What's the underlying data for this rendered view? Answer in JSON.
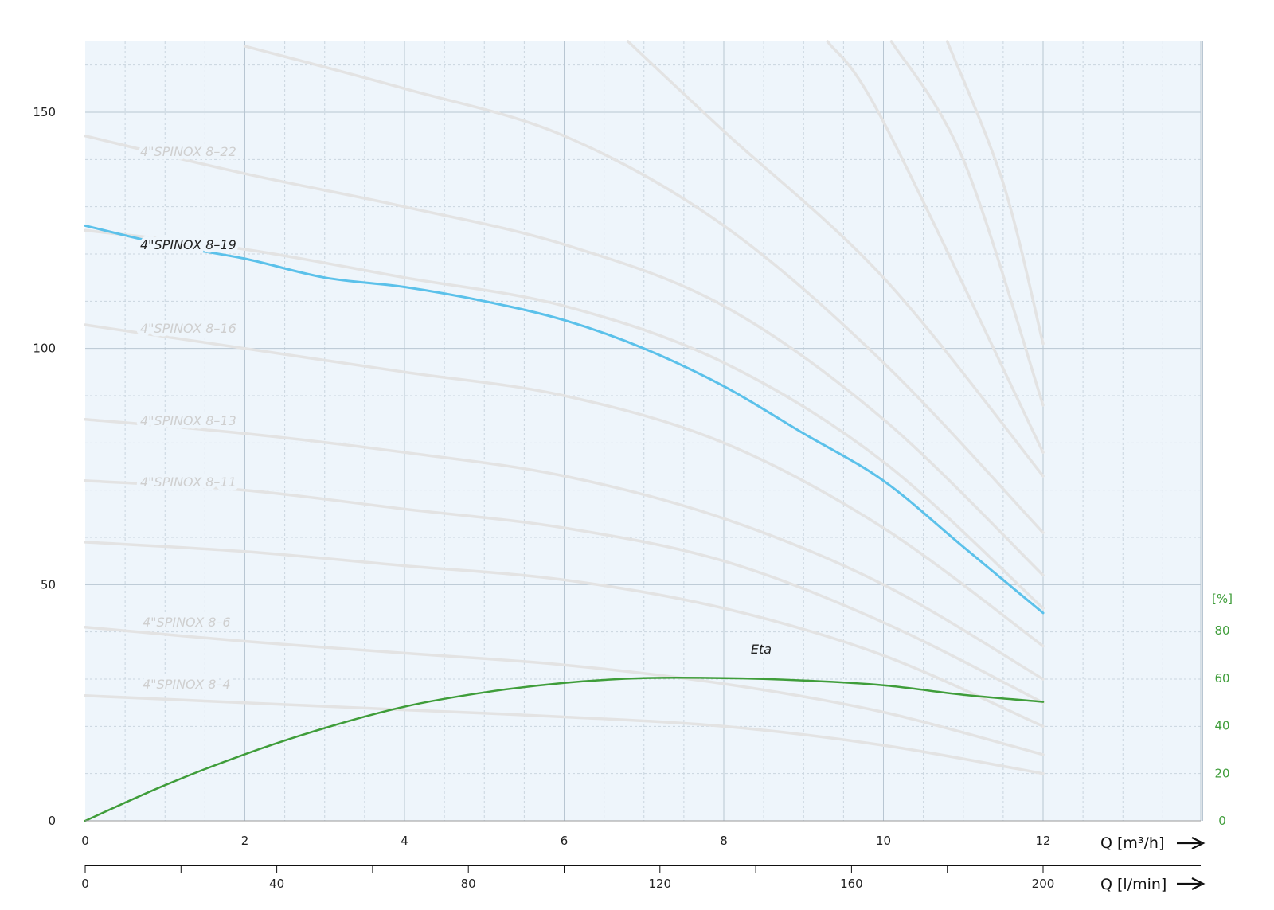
{
  "chart_data": {
    "type": "line",
    "x_axis": {
      "label": "Q [m³/h]",
      "range": [
        0,
        14
      ],
      "ticks": [
        0,
        2,
        4,
        6,
        8,
        10,
        12
      ],
      "tick_labels": [
        "0",
        "2",
        "4",
        "6",
        "8",
        "10",
        "12"
      ]
    },
    "x_axis_secondary": {
      "label": "Q [l/min]",
      "ticks": [
        0,
        40,
        80,
        120,
        160,
        200
      ],
      "tick_labels": [
        "0",
        "40",
        "80",
        "120",
        "160",
        "200"
      ]
    },
    "y_axis": {
      "range": [
        0,
        165
      ],
      "ticks": [
        0,
        50,
        100,
        150
      ],
      "tick_labels": [
        "0",
        "50",
        "100",
        "150"
      ]
    },
    "y_axis_secondary": {
      "label": "[%]",
      "range": [
        0,
        100
      ],
      "ticks": [
        0,
        20,
        40,
        60,
        80
      ],
      "tick_labels": [
        "0",
        "20",
        "40",
        "60",
        "80"
      ]
    },
    "grid": true,
    "colors": {
      "highlight": "#5bc1ea",
      "eta": "#3f9d3a",
      "background_curves": "#e3e3e3",
      "plot_background": "#eef5fb",
      "label_faded": "#cfcfcf",
      "label_highlight": "#222222"
    },
    "highlight": {
      "name": "4\"SPINOX 8–19",
      "x": [
        0,
        1,
        2,
        3,
        4,
        5,
        6,
        7,
        8,
        9,
        10,
        11,
        12
      ],
      "y": [
        126,
        122,
        119,
        115,
        113,
        110,
        106,
        100,
        92,
        82,
        72,
        58,
        44
      ]
    },
    "eta": {
      "name": "Eta",
      "x": [
        0,
        1,
        2,
        3,
        4,
        5,
        6,
        7,
        8,
        9,
        10,
        11,
        12
      ],
      "y": [
        0,
        15,
        28,
        39,
        48,
        54,
        58,
        60,
        60,
        59,
        57,
        53,
        50
      ]
    },
    "series": [
      {
        "label": "4\"SPINOX 8–4",
        "x": [
          0,
          2,
          4,
          6,
          8,
          10,
          12
        ],
        "y": [
          26.5,
          25,
          23.5,
          22,
          20,
          16,
          10
        ]
      },
      {
        "label": "4\"SPINOX 8–6",
        "x": [
          0,
          2,
          4,
          6,
          8,
          10,
          12
        ],
        "y": [
          41,
          38,
          35.5,
          33,
          29,
          23,
          14
        ]
      },
      {
        "label": "",
        "x": [
          0,
          2,
          4,
          6,
          8,
          10,
          12
        ],
        "y": [
          59,
          57,
          54,
          51,
          45,
          35,
          20
        ]
      },
      {
        "label": "4\"SPINOX 8–11",
        "x": [
          0,
          2,
          4,
          6,
          8,
          10,
          12
        ],
        "y": [
          72,
          70,
          66,
          62,
          55,
          42,
          25
        ]
      },
      {
        "label": "4\"SPINOX 8–13",
        "x": [
          0,
          2,
          4,
          6,
          8,
          10,
          12
        ],
        "y": [
          85,
          82,
          78,
          73,
          64,
          50,
          30
        ]
      },
      {
        "label": "4\"SPINOX 8–16",
        "x": [
          0,
          2,
          4,
          6,
          8,
          10,
          12
        ],
        "y": [
          105,
          100,
          95,
          90,
          80,
          62,
          37
        ]
      },
      {
        "label": "",
        "x": [
          0,
          2,
          4,
          6,
          8,
          10,
          12
        ],
        "y": [
          125,
          121,
          115,
          109,
          97,
          76,
          45
        ]
      },
      {
        "label": "4\"SPINOX 8–22",
        "x": [
          0,
          2,
          4,
          6,
          8,
          10,
          12
        ],
        "y": [
          145,
          137,
          130,
          122,
          109,
          85,
          52
        ]
      },
      {
        "label": "",
        "x": [
          2,
          4,
          6,
          8,
          10,
          12
        ],
        "y": [
          164,
          155,
          145,
          126,
          97,
          61
        ]
      },
      {
        "label": "",
        "x": [
          6.8,
          8,
          10,
          12
        ],
        "y": [
          165,
          146,
          115,
          73
        ]
      },
      {
        "label": "",
        "x": [
          9.3,
          10,
          12
        ],
        "y": [
          165,
          148,
          78
        ]
      },
      {
        "label": "",
        "x": [
          10.1,
          11,
          12
        ],
        "y": [
          165,
          140,
          88
        ]
      },
      {
        "label": "",
        "x": [
          10.8,
          11.5,
          12
        ],
        "y": [
          165,
          135,
          101
        ]
      }
    ],
    "labels_on_chart": [
      {
        "text": "4\"SPINOX 8–22",
        "series_index": 7
      },
      {
        "text": "4\"SPINOX 8–19",
        "series_index": "highlight"
      },
      {
        "text": "4\"SPINOX 8–16",
        "series_index": 5
      },
      {
        "text": "4\"SPINOX 8–13",
        "series_index": 4
      },
      {
        "text": "4\"SPINOX 8–11",
        "series_index": 3
      },
      {
        "text": "4\"SPINOX 8–6",
        "series_index": 1
      },
      {
        "text": "4\"SPINOX 8–4",
        "series_index": 0
      },
      {
        "text": "Eta",
        "series_index": "eta"
      }
    ]
  }
}
